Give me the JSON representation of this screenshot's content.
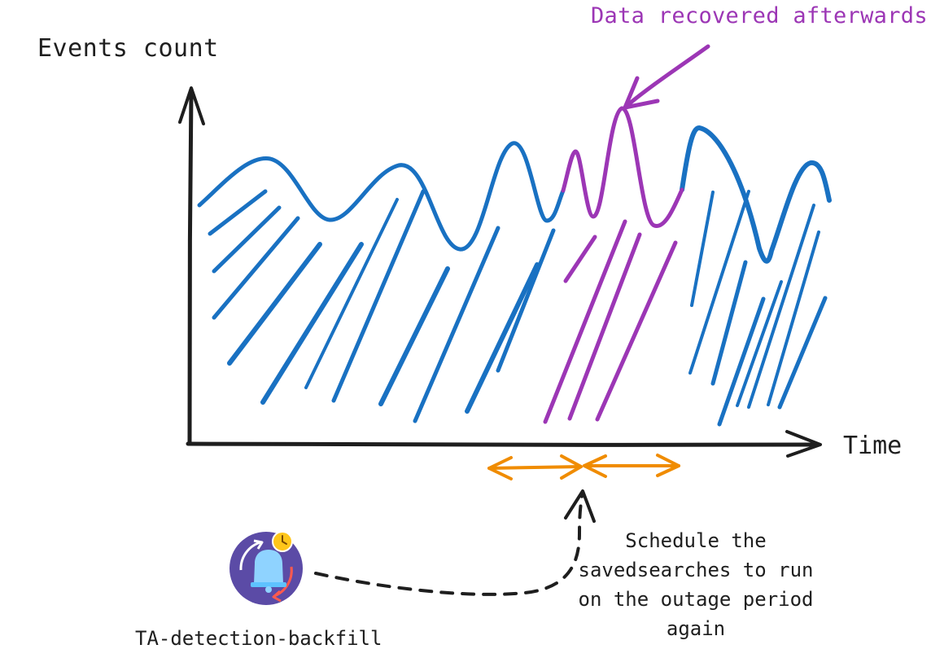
{
  "diagram": {
    "y_axis_label": "Events count",
    "x_axis_label": "Time",
    "annotation_recovered": "Data recovered afterwards",
    "annotation_schedule": "Schedule the savedsearches to run on the outage period again",
    "app_label": "TA-detection-backfill",
    "app_icon": "bell-clock-icon",
    "colors": {
      "series": "#1971c2",
      "recovered": "#9c36b5",
      "outage": "#f08c00",
      "ink": "#1e1e1e",
      "icon_bg": "#5b4ba6",
      "icon_bell": "#8fd3ff",
      "icon_clock": "#ffc61a",
      "icon_arrow": "#ff5a4e"
    }
  }
}
